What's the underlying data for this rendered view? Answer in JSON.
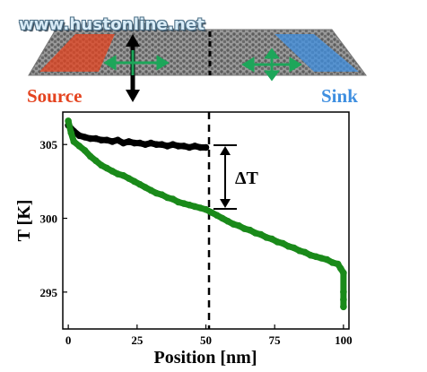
{
  "watermark": "www.hustonline.net",
  "labels": {
    "source": "Source",
    "sink": "Sink",
    "delta": "ΔT"
  },
  "colors": {
    "source": "#e4431f",
    "sink": "#3f8fe0",
    "green": "#1a8a1a",
    "black": "#000000"
  },
  "chart_data": {
    "type": "scatter",
    "title": "",
    "xlabel": "Position [nm]",
    "ylabel": "T [K]",
    "xlim": [
      -2,
      102
    ],
    "ylim": [
      292.5,
      307.2
    ],
    "xticks": [
      0,
      25,
      50,
      75,
      100
    ],
    "yticks": [
      295,
      300,
      305
    ],
    "grid": false,
    "series": [
      {
        "color": "#000000",
        "x": [
          0,
          2,
          4,
          6,
          8,
          10,
          12,
          14,
          16,
          18,
          20,
          22,
          24,
          26,
          28,
          30,
          32,
          34,
          36,
          38,
          40,
          42,
          44,
          46,
          48,
          50
        ],
        "y": [
          306.3,
          305.9,
          305.6,
          305.5,
          305.4,
          305.4,
          305.3,
          305.3,
          305.2,
          305.3,
          305.1,
          305.2,
          305.1,
          305.1,
          305.0,
          305.1,
          305.0,
          305.0,
          304.9,
          305.0,
          304.9,
          304.9,
          304.8,
          304.9,
          304.8,
          304.8
        ]
      },
      {
        "color": "#1a8a1a",
        "x": [
          0,
          1,
          2,
          4,
          6,
          8,
          10,
          12,
          14,
          16,
          18,
          20,
          22,
          24,
          26,
          28,
          30,
          32,
          34,
          36,
          38,
          40,
          42,
          44,
          46,
          48,
          50,
          52,
          54,
          56,
          58,
          60,
          62,
          64,
          66,
          68,
          70,
          72,
          74,
          76,
          78,
          80,
          82,
          84,
          86,
          88,
          90,
          92,
          94,
          96,
          98,
          99,
          100,
          100,
          100,
          100
        ],
        "y": [
          306.6,
          305.8,
          305.2,
          304.9,
          304.6,
          304.2,
          303.9,
          303.6,
          303.4,
          303.2,
          303.0,
          302.9,
          302.7,
          302.5,
          302.3,
          302.1,
          301.9,
          301.7,
          301.6,
          301.4,
          301.3,
          301.1,
          301.0,
          300.9,
          300.8,
          300.7,
          300.6,
          300.4,
          300.2,
          300.0,
          299.8,
          299.6,
          299.5,
          299.3,
          299.2,
          299.0,
          298.9,
          298.7,
          298.6,
          298.4,
          298.3,
          298.1,
          298.0,
          297.8,
          297.7,
          297.5,
          297.4,
          297.3,
          297.2,
          297.0,
          296.9,
          296.6,
          296.3,
          295.0,
          294.5,
          294.0
        ]
      }
    ],
    "annotations": [
      {
        "text": "ΔT",
        "x": 50,
        "y_range": [
          300.6,
          304.8
        ]
      }
    ]
  }
}
